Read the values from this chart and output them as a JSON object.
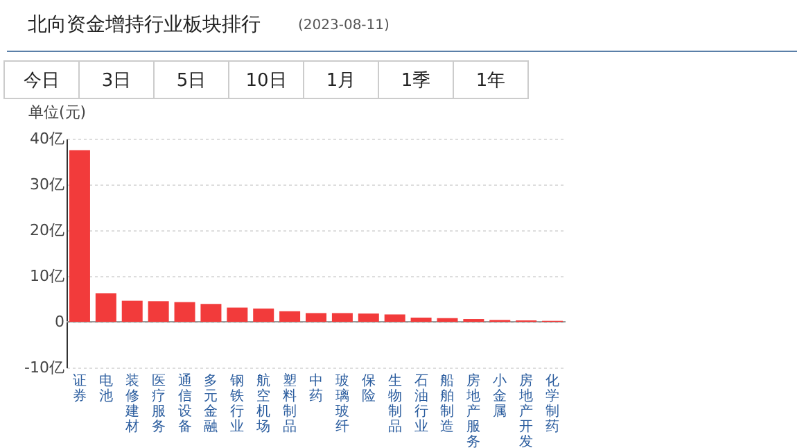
{
  "chart_data": {
    "type": "bar",
    "title": "北向资金增持行业板块排行",
    "subtitle": "(2023-08-11)",
    "ylabel": "单位(元)",
    "annotations": [
      "今日",
      "3日",
      "5日",
      "10日",
      "1月",
      "1季",
      "1年"
    ],
    "categories": [
      "证券",
      "电池",
      "装修建材",
      "医疗服务",
      "通信设备",
      "多元金融",
      "钢铁行业",
      "航空机场",
      "塑料制品",
      "中药",
      "玻璃玻纤",
      "保险",
      "生物制品",
      "石油行业",
      "船舶制造",
      "房地产服务",
      "小金属",
      "房地产开发",
      "化学制药"
    ],
    "values": [
      37.5,
      6.2,
      4.6,
      4.5,
      4.3,
      3.9,
      3.1,
      2.9,
      2.3,
      1.9,
      1.9,
      1.8,
      1.6,
      0.9,
      0.8,
      0.6,
      0.4,
      0.3,
      0.2
    ],
    "color": "#f23b3b",
    "ylim": [
      -10,
      40
    ],
    "yticks": [
      {
        "value": -10,
        "label": "-10亿"
      },
      0,
      {
        "value": 10,
        "label": "10亿"
      },
      {
        "value": 20,
        "label": "20亿"
      },
      {
        "value": 30,
        "label": "30亿"
      },
      {
        "value": 40,
        "label": "40亿"
      }
    ],
    "grid": "y"
  }
}
